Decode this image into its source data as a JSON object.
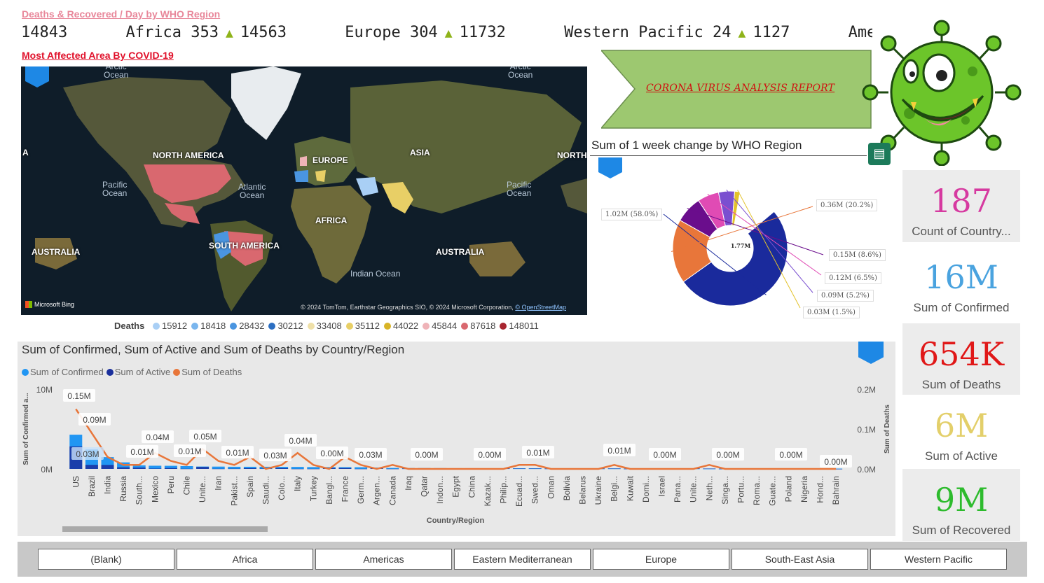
{
  "header": {
    "ticker_title": "Deaths & Recovered / Day by WHO Region",
    "area_title": "Most Affected Area By COVID-19",
    "ticker": [
      {
        "region": "",
        "deaths": "",
        "recovered": "14843",
        "partial": true
      },
      {
        "region": "Africa",
        "deaths": "353",
        "recovered": "14563"
      },
      {
        "region": "Europe",
        "deaths": "304",
        "recovered": "11732"
      },
      {
        "region": "Western Pacific",
        "deaths": "24",
        "recovered": "1127"
      },
      {
        "region": "Amer",
        "deaths": "",
        "recovered": "",
        "partial": true
      }
    ],
    "up_arrow": "▲"
  },
  "map": {
    "continents": [
      "NORTH AMERICA",
      "EUROPE",
      "ASIA",
      "AFRICA",
      "SOUTH AMERICA",
      "AUSTRALIA",
      "AUSTRALIA",
      "NORTH",
      "A"
    ],
    "oceans": [
      {
        "text": "Pacific\nOcean"
      },
      {
        "text": "Atlantic\nOcean"
      },
      {
        "text": "Pacific\nOcean"
      },
      {
        "text": "Indian Ocean"
      },
      {
        "text": "Arctic\nOcean"
      },
      {
        "text": "Arctic\nOcean"
      }
    ],
    "bing": "Microsoft Bing",
    "credit": "© 2024 TomTom, Earthstar Geographics SIO, © 2024 Microsoft Corporation,",
    "credit_link": "© OpenStreetMap"
  },
  "legend": {
    "title": "Deaths",
    "items": [
      {
        "label": "15912",
        "color": "#a9cff5"
      },
      {
        "label": "18418",
        "color": "#7ab6ee"
      },
      {
        "label": "28432",
        "color": "#4a95e0"
      },
      {
        "label": "30212",
        "color": "#2c6fc2"
      },
      {
        "label": "33408",
        "color": "#efe0a8"
      },
      {
        "label": "35112",
        "color": "#e8cf66"
      },
      {
        "label": "44022",
        "color": "#d8b426"
      },
      {
        "label": "45844",
        "color": "#efb3b8"
      },
      {
        "label": "87618",
        "color": "#d9686f"
      },
      {
        "label": "148011",
        "color": "#a8252f"
      }
    ]
  },
  "banner": {
    "text": "CORONA VIRUS ANALYSIS REPORT"
  },
  "donut": {
    "title": "Sum of 1 week change by WHO Region",
    "center": "1.77M",
    "labels": [
      "1.02M (58.0%)",
      "0.36M (20.2%)",
      "0.15M (8.6%)",
      "0.12M (6.5%)",
      "0.09M (5.2%)",
      "0.03M (1.5%)"
    ],
    "focus_icon": "focus-mode-icon"
  },
  "kpis": [
    {
      "value": "187",
      "label": "Count of Country...",
      "color": "#d63aa0"
    },
    {
      "value": "16M",
      "label": "Sum of Confirmed",
      "color": "#4aa3df"
    },
    {
      "value": "654K",
      "label": "Sum of Deaths",
      "color": "#e01818"
    },
    {
      "value": "6M",
      "label": "Sum of Active",
      "color": "#e3cf6a"
    },
    {
      "value": "9M",
      "label": "Sum of Recovered",
      "color": "#2dbb2d"
    }
  ],
  "combo": {
    "title": "Sum of Confirmed, Sum of Active and Sum of Deaths by Country/Region",
    "legend": [
      {
        "label": "Sum of Confirmed",
        "color": "#2196f3"
      },
      {
        "label": "Sum of Active",
        "color": "#1a2f9c"
      },
      {
        "label": "Sum of Deaths",
        "color": "#e8763a"
      }
    ],
    "y_left_label": "Sum of Confirmed a...",
    "y_right_label": "Sum of Deaths",
    "x_label": "Country/Region",
    "y_left_ticks": [
      "10M",
      "0M"
    ],
    "y_right_ticks": [
      "0.2M",
      "0.1M",
      "0.0M"
    ],
    "data_labels": [
      "0.15M",
      "0.09M",
      "0.03M",
      "0.01M",
      "0.04M",
      "0.01M",
      "0.05M",
      "0.01M",
      "0.03M",
      "0.04M",
      "0.00M",
      "0.03M",
      "0.00M",
      "0.00M",
      "0.01M",
      "0.01M",
      "0.00M",
      "0.00M",
      "0.00M",
      "0.00M"
    ]
  },
  "chart_data": {
    "type": "bar",
    "title": "Sum of Confirmed, Sum of Active and Sum of Deaths by Country/Region",
    "xlabel": "Country/Region",
    "ylabel": "Sum of Confirmed a...",
    "ylabel_right": "Sum of Deaths",
    "ylim": [
      0,
      10
    ],
    "ylim_right": [
      0,
      0.2
    ],
    "categories": [
      "US",
      "Brazil",
      "India",
      "Russia",
      "South...",
      "Mexico",
      "Peru",
      "Chile",
      "Unite...",
      "Iran",
      "Pakist...",
      "Spain",
      "Saudi...",
      "Colo...",
      "Italy",
      "Turkey",
      "Bangl...",
      "France",
      "Germ...",
      "Argen...",
      "Canada",
      "Iraq",
      "Qatar",
      "Indon...",
      "Egypt",
      "China",
      "Kazak...",
      "Philip...",
      "Ecuad...",
      "Swed...",
      "Oman",
      "Bolivia",
      "Belarus",
      "Ukraine",
      "Belgi...",
      "Kuwait",
      "Domi...",
      "Israel",
      "Pana...",
      "Unite...",
      "Neth...",
      "Singa...",
      "Portu...",
      "Roma...",
      "Guate...",
      "Poland",
      "Nigeria",
      "Hond...",
      "Bahrain"
    ],
    "series": [
      {
        "name": "Sum of Confirmed",
        "axis": "left",
        "values": [
          4.29,
          2.44,
          1.48,
          0.82,
          0.45,
          0.4,
          0.39,
          0.35,
          0.3,
          0.29,
          0.27,
          0.27,
          0.27,
          0.26,
          0.25,
          0.23,
          0.23,
          0.22,
          0.21,
          0.17,
          0.12,
          0.11,
          0.11,
          0.1,
          0.09,
          0.09,
          0.08,
          0.08,
          0.08,
          0.08,
          0.08,
          0.07,
          0.07,
          0.07,
          0.07,
          0.06,
          0.06,
          0.06,
          0.06,
          0.06,
          0.05,
          0.05,
          0.05,
          0.05,
          0.05,
          0.04,
          0.04,
          0.04,
          0.04
        ]
      },
      {
        "name": "Sum of Active",
        "axis": "left",
        "values": [
          2.82,
          0.51,
          0.5,
          0.2,
          0.17,
          0.05,
          0.11,
          0.02,
          0.25,
          0.02,
          0.03,
          0.09,
          0.04,
          0.1,
          0.01,
          0.01,
          0.1,
          0.11,
          0.01,
          0.09,
          0.01,
          0.03,
          0.01,
          0.04,
          0.05,
          0.01,
          0.03,
          0.05,
          0.04,
          0.04,
          0.02,
          0.05,
          0.01,
          0.03,
          0.04,
          0.01,
          0.03,
          0.04,
          0.02,
          0.05,
          0.04,
          0.01,
          0.01,
          0.02,
          0.03,
          0.01,
          0.02,
          0.03,
          0.0
        ]
      },
      {
        "name": "Sum of Deaths",
        "axis": "right",
        "values": [
          0.15,
          0.09,
          0.03,
          0.01,
          0.01,
          0.04,
          0.02,
          0.01,
          0.05,
          0.02,
          0.01,
          0.03,
          0.0,
          0.01,
          0.04,
          0.01,
          0.0,
          0.03,
          0.01,
          0.0,
          0.01,
          0.0,
          0.0,
          0.0,
          0.0,
          0.0,
          0.0,
          0.0,
          0.01,
          0.01,
          0.0,
          0.0,
          0.0,
          0.0,
          0.01,
          0.0,
          0.0,
          0.0,
          0.0,
          0.0,
          0.01,
          0.0,
          0.0,
          0.0,
          0.0,
          0.0,
          0.0,
          0.0,
          0.0
        ]
      }
    ],
    "donut": {
      "type": "pie",
      "center_label": "1.77M",
      "slices": [
        {
          "label": "1.02M (58.0%)",
          "value": 1.02,
          "color": "#1a2a9c"
        },
        {
          "label": "0.36M (20.2%)",
          "value": 0.36,
          "color": "#e8763a"
        },
        {
          "label": "0.15M (8.6%)",
          "value": 0.15,
          "color": "#6a0d8c"
        },
        {
          "label": "0.12M (6.5%)",
          "value": 0.12,
          "color": "#e04bb4"
        },
        {
          "label": "0.09M (5.2%)",
          "value": 0.09,
          "color": "#7a4fd0"
        },
        {
          "label": "0.03M (1.5%)",
          "value": 0.03,
          "color": "#e3c22a"
        }
      ]
    }
  },
  "slicer": {
    "buttons": [
      "(Blank)",
      "Africa",
      "Americas",
      "Eastern Mediterranean",
      "Europe",
      "South-East Asia",
      "Western Pacific"
    ]
  }
}
